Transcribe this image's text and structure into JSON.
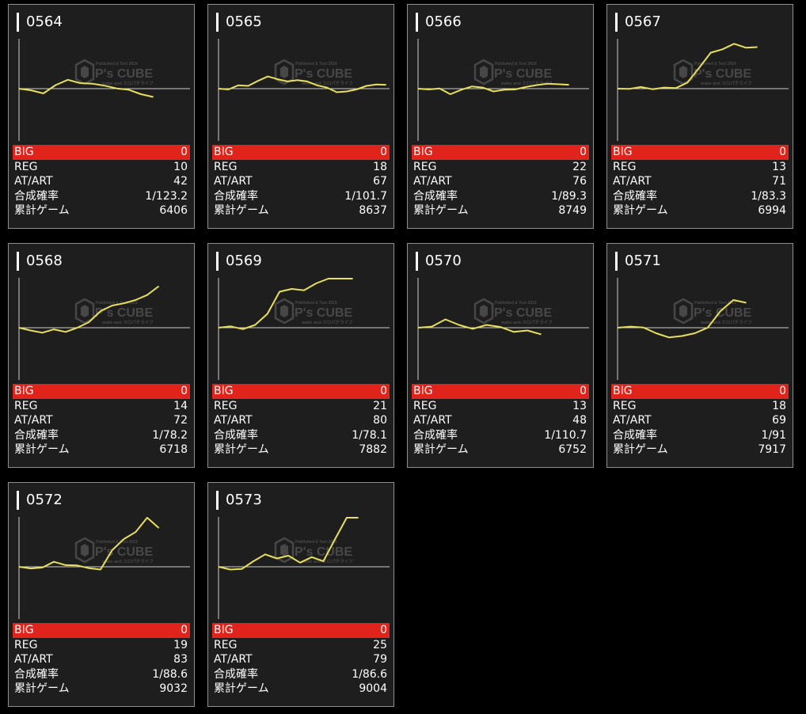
{
  "labels": {
    "big": "BIG",
    "reg": "REG",
    "at": "AT/ART",
    "rate": "合成確率",
    "games": "累計ゲーム"
  },
  "watermark": {
    "logo": "P's CUBE",
    "subtitle": "Published & Text 2019",
    "tagline": "wake and スロパチライフ"
  },
  "colors": {
    "background": "#000000",
    "card": "#1e1e1e",
    "big_row": "#e0231b",
    "graph_line": "#e8e05a"
  },
  "machines": [
    {
      "id": "0564",
      "big": "0",
      "reg": "10",
      "at": "42",
      "rate": "1/123.2",
      "games": "6406",
      "chart_data": {
        "type": "line",
        "values": [
          0,
          -60,
          -170,
          130,
          320,
          200,
          180,
          110,
          10,
          -40,
          -200,
          -300
        ]
      }
    },
    {
      "id": "0565",
      "big": "0",
      "reg": "18",
      "at": "67",
      "rate": "1/101.7",
      "games": "8637",
      "chart_data": {
        "type": "line",
        "values": [
          0,
          -30,
          120,
          100,
          280,
          440,
          340,
          260,
          310,
          260,
          120,
          40,
          -130,
          -100,
          -30,
          100,
          150,
          140
        ]
      }
    },
    {
      "id": "0566",
      "big": "0",
      "reg": "22",
      "at": "76",
      "rate": "1/89.3",
      "games": "8749",
      "chart_data": {
        "type": "line",
        "values": [
          0,
          -30,
          10,
          -200,
          -40,
          80,
          40,
          -100,
          -40,
          -30,
          60,
          130,
          180,
          160,
          140
        ]
      }
    },
    {
      "id": "0567",
      "big": "0",
      "reg": "13",
      "at": "71",
      "rate": "1/83.3",
      "games": "6994",
      "chart_data": {
        "type": "line",
        "values": [
          0,
          -10,
          60,
          -20,
          40,
          20,
          220,
          750,
          1300,
          1420,
          1620,
          1480,
          1500
        ]
      }
    },
    {
      "id": "0568",
      "big": "0",
      "reg": "14",
      "at": "72",
      "rate": "1/78.2",
      "games": "6718",
      "chart_data": {
        "type": "line",
        "values": [
          0,
          -100,
          -180,
          -60,
          -150,
          0,
          200,
          600,
          800,
          880,
          1000,
          1180,
          1500
        ]
      }
    },
    {
      "id": "0569",
      "big": "0",
      "reg": "21",
      "at": "80",
      "rate": "1/78.1",
      "games": "7882",
      "chart_data": {
        "type": "line",
        "values": [
          0,
          50,
          -50,
          100,
          500,
          1300,
          1400,
          1350,
          1600,
          2200,
          2050,
          1950
        ]
      }
    },
    {
      "id": "0570",
      "big": "0",
      "reg": "13",
      "at": "48",
      "rate": "1/110.7",
      "games": "6752",
      "chart_data": {
        "type": "line",
        "values": [
          0,
          40,
          300,
          100,
          -40,
          100,
          30,
          -150,
          -100,
          -240
        ]
      }
    },
    {
      "id": "0571",
      "big": "0",
      "reg": "18",
      "at": "69",
      "rate": "1/91",
      "games": "7917",
      "chart_data": {
        "type": "line",
        "values": [
          0,
          40,
          10,
          -200,
          -350,
          -300,
          -200,
          0,
          600,
          1000,
          900
        ]
      }
    },
    {
      "id": "0572",
      "big": "0",
      "reg": "19",
      "at": "83",
      "rate": "1/88.6",
      "games": "9032",
      "chart_data": {
        "type": "line",
        "values": [
          0,
          -60,
          -30,
          180,
          60,
          50,
          -50,
          -100,
          600,
          1000,
          1250,
          1850,
          1400
        ]
      }
    },
    {
      "id": "0573",
      "big": "0",
      "reg": "25",
      "at": "79",
      "rate": "1/86.6",
      "games": "9004",
      "chart_data": {
        "type": "line",
        "values": [
          0,
          -100,
          -80,
          200,
          450,
          300,
          400,
          150,
          350,
          200,
          1000,
          2600,
          3800
        ]
      }
    }
  ]
}
